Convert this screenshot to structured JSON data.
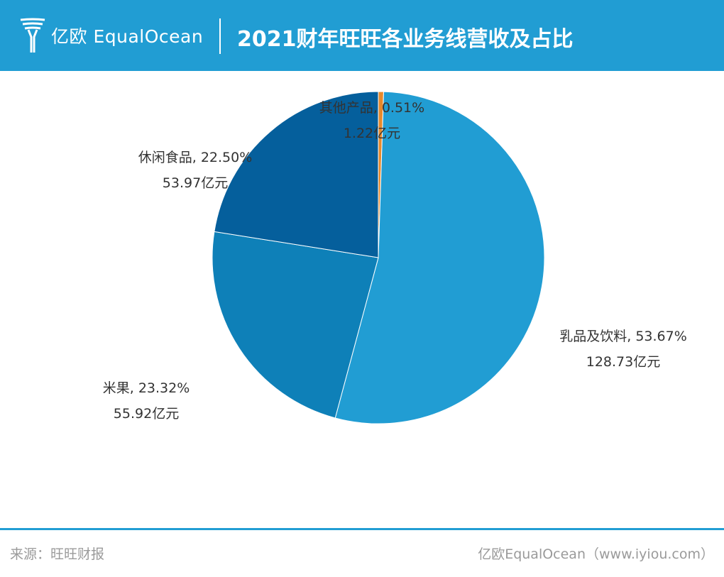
{
  "header": {
    "logo_text": "亿欧 EqualOcean",
    "title": "2021财年旺旺各业务线营收及占比"
  },
  "colors": {
    "header_bg": "#219dd3",
    "other": "#e8892b",
    "dairy": "#219dd3",
    "rice": "#0e80b8",
    "snacks": "#055f9c"
  },
  "chart_data": {
    "type": "pie",
    "title": "2021财年旺旺各业务线营收及占比",
    "unit": "亿元",
    "start": "12 o'clock, clockwise",
    "slices": [
      {
        "name": "其他产品",
        "percent": 0.51,
        "percent_label": "0.51%",
        "value": 1.22,
        "value_label": "1.22亿元",
        "color": "#e8892b"
      },
      {
        "name": "乳品及饮料",
        "percent": 53.67,
        "percent_label": "53.67%",
        "value": 128.73,
        "value_label": "128.73亿元",
        "color": "#219dd3"
      },
      {
        "name": "米果",
        "percent": 23.32,
        "percent_label": "23.32%",
        "value": 55.92,
        "value_label": "55.92亿元",
        "color": "#0e80b8"
      },
      {
        "name": "休闲食品",
        "percent": 22.5,
        "percent_label": "22.50%",
        "value": 53.97,
        "value_label": "53.97亿元",
        "color": "#055f9c"
      }
    ]
  },
  "footer": {
    "source": "来源：旺旺财报",
    "credit": "亿欧EqualOcean（www.iyiou.com）"
  }
}
